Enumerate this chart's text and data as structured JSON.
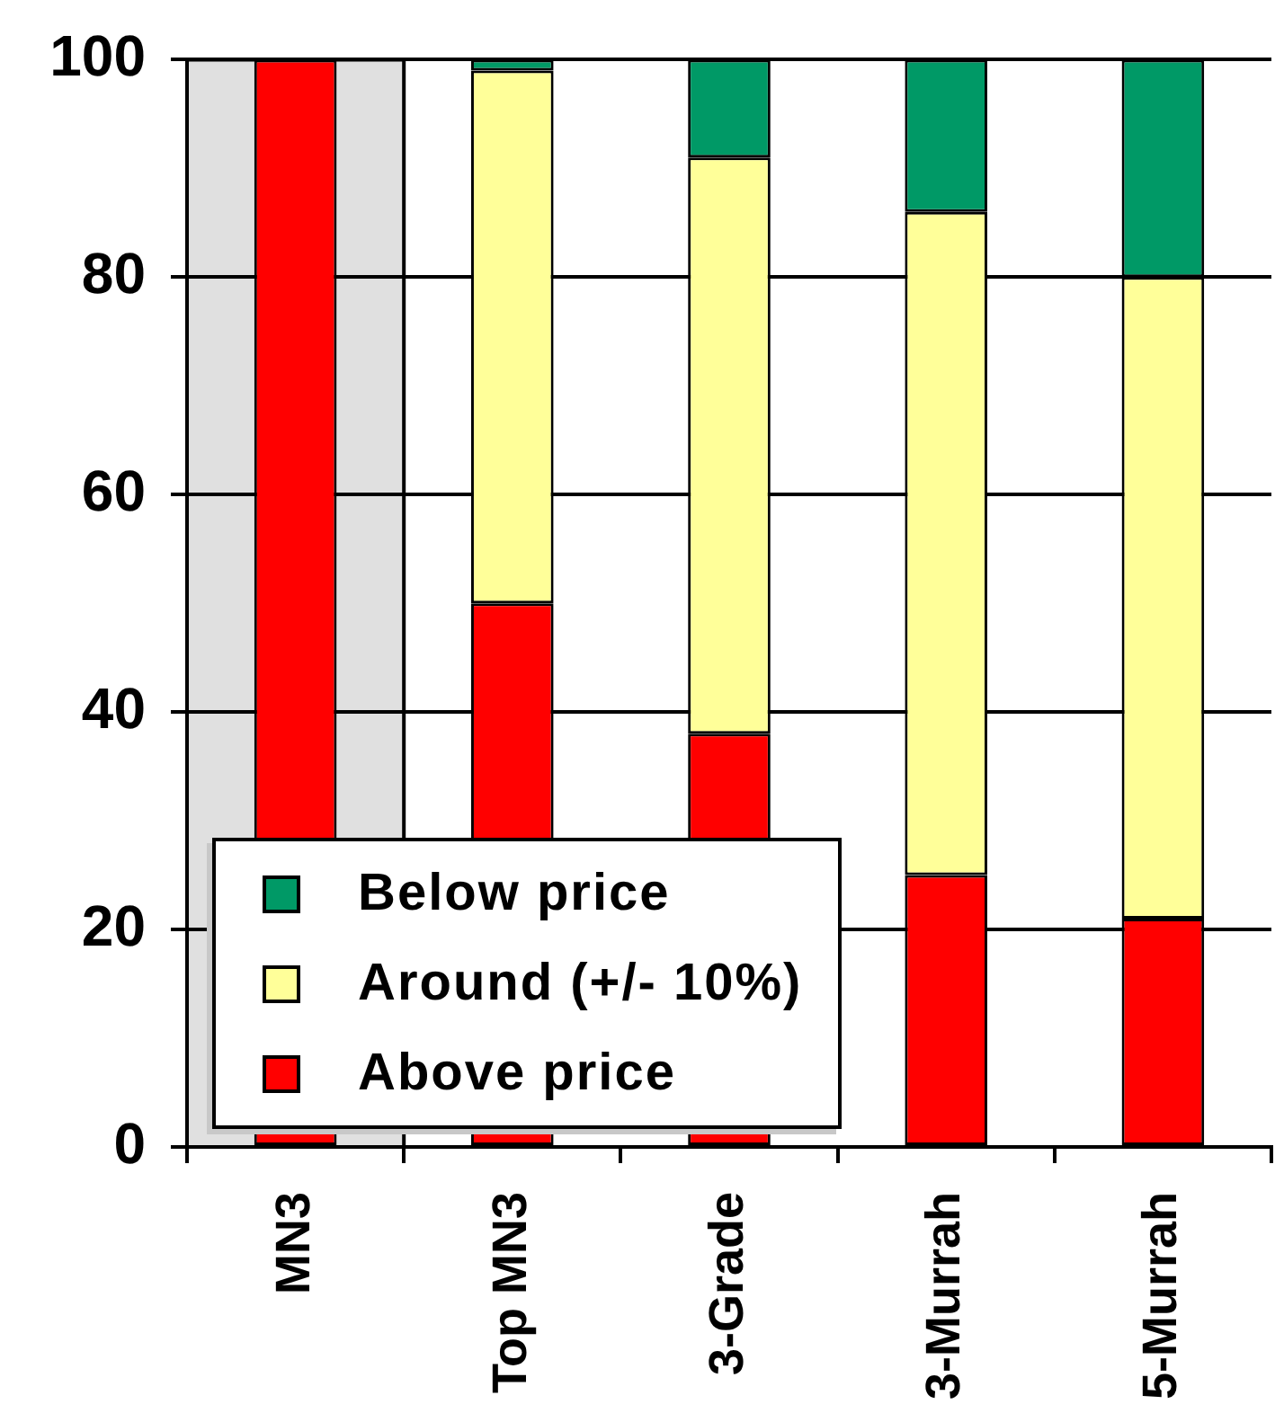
{
  "chart_data": {
    "type": "bar",
    "stacked": true,
    "categories": [
      "MN3",
      "Top MN3",
      "3-Grade",
      "3-Murrah",
      "5-Murrah"
    ],
    "series": [
      {
        "name": "Above price",
        "color": "#ff0000",
        "values": [
          100,
          50,
          38,
          25,
          21
        ]
      },
      {
        "name": "Around (+/- 10%)",
        "color": "#ffff99",
        "values": [
          0,
          49,
          53,
          61,
          59
        ]
      },
      {
        "name": "Below price",
        "color": "#009966",
        "values": [
          0,
          1,
          9,
          14,
          20
        ]
      }
    ],
    "ylim": [
      0,
      100
    ],
    "yticks": [
      0,
      20,
      40,
      60,
      80,
      100
    ],
    "grid": "y",
    "legend": "bottom left",
    "bands": [
      {
        "axis": "x",
        "from": "MN3",
        "to": "MN3",
        "color": "#e0e0e0"
      }
    ]
  }
}
